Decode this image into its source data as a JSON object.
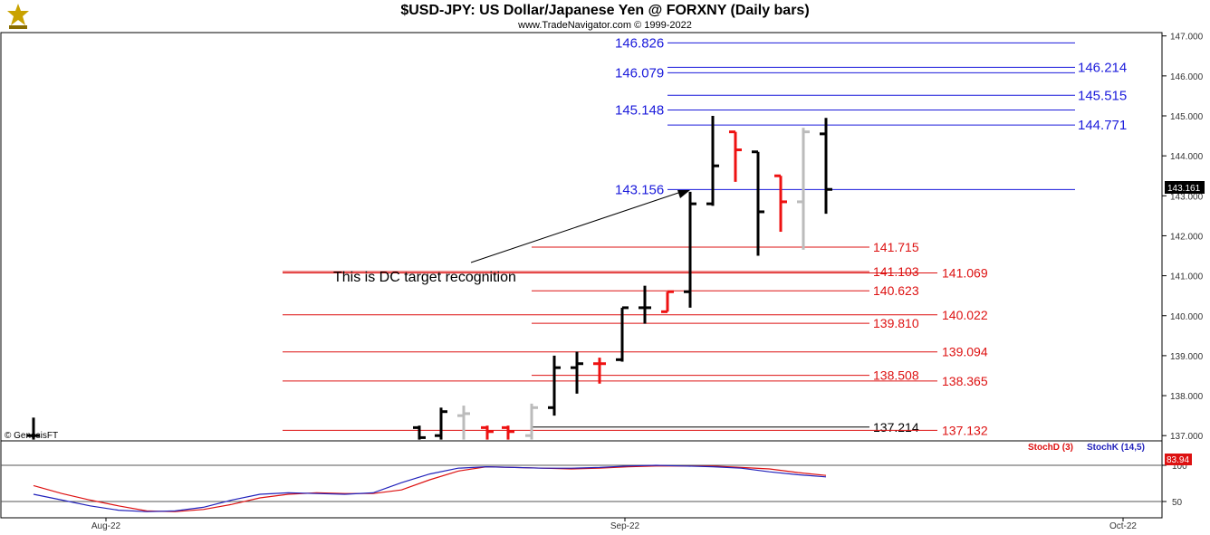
{
  "header": {
    "title": "$USD-JPY:  US Dollar/Japanese Yen @ FORXNY  (Daily bars)",
    "subtitle": "www.TradeNavigator.com © 1999-2022"
  },
  "colors": {
    "blue_level": "#1a1adb",
    "red_level": "#dd1111",
    "bar_up": "#000000",
    "bar_red": "#ee1111",
    "bar_gray": "#bbbbbb",
    "stoch_d": "#dd1111",
    "stoch_k": "#2222bb"
  },
  "chart_data": {
    "type": "bar",
    "title": "$USD-JPY:  US Dollar/Japanese Yen @ FORXNY  (Daily bars)",
    "price_axis": {
      "ylim": [
        136.8,
        147.2
      ],
      "ticks": [
        "147.000",
        "146.000",
        "145.000",
        "144.000",
        "143.000",
        "142.000",
        "141.000",
        "140.000",
        "139.000",
        "138.000",
        "137.000"
      ],
      "last_price": "143.161"
    },
    "x_ticks": [
      "Aug-22",
      "Sep-22",
      "Oct-22"
    ],
    "blue_levels": [
      "146.826",
      "146.079",
      "146.214",
      "145.515",
      "145.148",
      "144.771",
      "143.156"
    ],
    "red_levels": [
      "141.715",
      "141.103",
      "141.069",
      "140.623",
      "140.022",
      "139.810",
      "139.094",
      "138.508",
      "138.365",
      "137.214",
      "137.132"
    ],
    "ohlc_bars": [
      {
        "o": 137.0,
        "h": 137.45,
        "l": 136.9,
        "c": 137.0,
        "color": "black"
      },
      {
        "o": 137.2,
        "h": 137.25,
        "l": 136.9,
        "c": 136.95,
        "color": "black"
      },
      {
        "o": 137.0,
        "h": 137.7,
        "l": 136.9,
        "c": 137.6,
        "color": "black"
      },
      {
        "o": 137.5,
        "h": 137.75,
        "l": 136.9,
        "c": 137.55,
        "color": "gray"
      },
      {
        "o": 137.2,
        "h": 137.25,
        "l": 136.9,
        "c": 137.1,
        "color": "red"
      },
      {
        "o": 137.2,
        "h": 137.25,
        "l": 136.9,
        "c": 137.1,
        "color": "red"
      },
      {
        "o": 137.0,
        "h": 137.8,
        "l": 136.9,
        "c": 137.7,
        "color": "gray"
      },
      {
        "o": 137.7,
        "h": 139.0,
        "l": 137.5,
        "c": 138.7,
        "color": "black"
      },
      {
        "o": 138.7,
        "h": 139.1,
        "l": 138.05,
        "c": 138.8,
        "color": "black"
      },
      {
        "o": 138.8,
        "h": 138.95,
        "l": 138.3,
        "c": 138.8,
        "color": "red"
      },
      {
        "o": 138.9,
        "h": 140.2,
        "l": 138.85,
        "c": 140.2,
        "color": "black"
      },
      {
        "o": 140.2,
        "h": 140.75,
        "l": 139.8,
        "c": 140.2,
        "color": "black"
      },
      {
        "o": 140.1,
        "h": 140.6,
        "l": 140.1,
        "c": 140.6,
        "color": "red"
      },
      {
        "o": 140.6,
        "h": 143.1,
        "l": 140.2,
        "c": 142.8,
        "color": "black"
      },
      {
        "o": 142.8,
        "h": 145.0,
        "l": 142.75,
        "c": 143.75,
        "color": "black"
      },
      {
        "o": 144.6,
        "h": 144.6,
        "l": 143.35,
        "c": 144.15,
        "color": "red"
      },
      {
        "o": 144.1,
        "h": 144.1,
        "l": 141.5,
        "c": 142.6,
        "color": "black"
      },
      {
        "o": 143.5,
        "h": 143.5,
        "l": 142.1,
        "c": 142.85,
        "color": "red"
      },
      {
        "o": 142.85,
        "h": 144.7,
        "l": 141.65,
        "c": 144.6,
        "color": "gray"
      },
      {
        "o": 144.55,
        "h": 144.95,
        "l": 142.55,
        "c": 143.16,
        "color": "black"
      }
    ],
    "stochastic": {
      "labels": [
        "StochD (3)",
        "StochK (14,5)"
      ],
      "ylim": [
        0,
        110
      ],
      "ticks": [
        "100",
        "50"
      ],
      "last_value": "83.94",
      "stoch_d": [
        72,
        61,
        52,
        44,
        37,
        36,
        39,
        46,
        55,
        60,
        62,
        61,
        61,
        66,
        80,
        92,
        98,
        97,
        96,
        95,
        96,
        98,
        99,
        99,
        99,
        97,
        95,
        90,
        86
      ],
      "stoch_k": [
        60,
        52,
        44,
        38,
        36,
        37,
        42,
        52,
        60,
        62,
        61,
        60,
        62,
        76,
        88,
        96,
        98,
        97,
        96,
        96,
        97,
        99,
        100,
        99,
        98,
        96,
        91,
        87,
        84
      ]
    },
    "annotation": "This is DC target recognition",
    "watermark": "© GenesisFT"
  }
}
